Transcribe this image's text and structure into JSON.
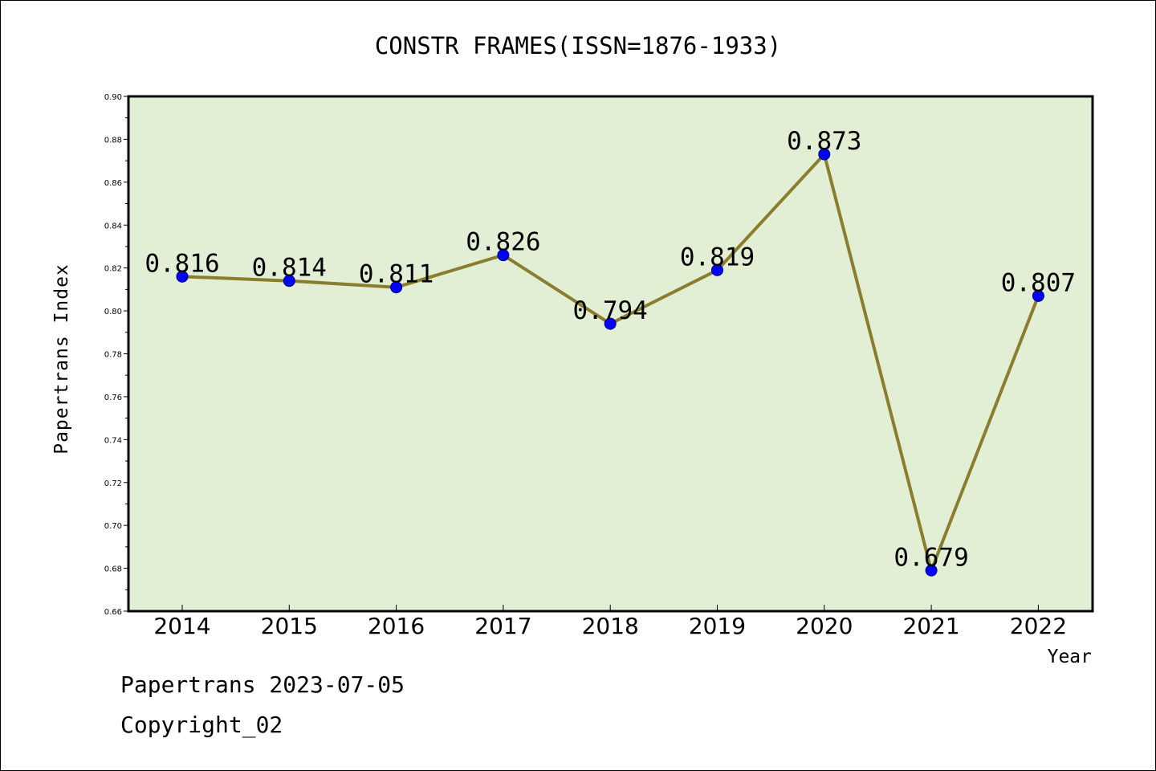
{
  "chart_data": {
    "type": "line",
    "title": "CONSTR FRAMES(ISSN=1876-1933)",
    "xlabel": "Year",
    "ylabel": "Papertrans Index",
    "categories": [
      "2014",
      "2015",
      "2016",
      "2017",
      "2018",
      "2019",
      "2020",
      "2021",
      "2022"
    ],
    "series": [
      {
        "values": [
          0.816,
          0.814,
          0.811,
          0.826,
          0.794,
          0.819,
          0.873,
          0.679,
          0.807
        ],
        "value_labels": [
          "0.816",
          "0.814",
          "0.811",
          "0.826",
          "0.794",
          "0.819",
          "0.873",
          "0.679",
          "0.807"
        ],
        "line_color": "#8b7d2e",
        "marker_color": "#0000ff"
      }
    ],
    "ylim": [
      0.66,
      0.9
    ],
    "yticks": [
      "0.66",
      "0.68",
      "0.70",
      "0.72",
      "0.74",
      "0.76",
      "0.78",
      "0.80",
      "0.82",
      "0.84",
      "0.86",
      "0.88",
      "0.90"
    ],
    "grid": false,
    "legend": "none",
    "plot_background": "#e2efd4"
  },
  "footer": {
    "line1": "Papertrans 2023-07-05",
    "line2": "Copyright_02"
  }
}
